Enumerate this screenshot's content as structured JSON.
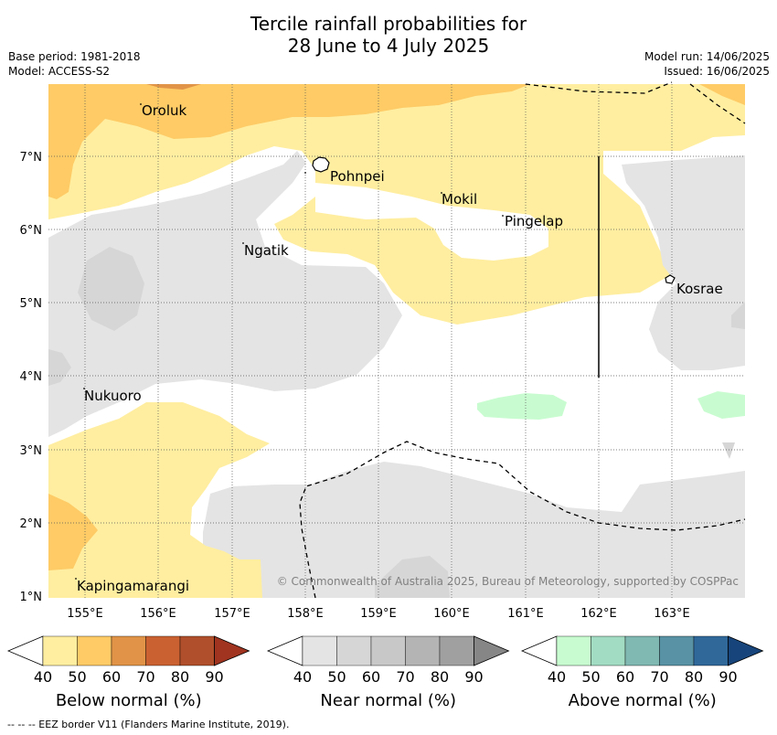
{
  "title_line1": "Tercile rainfall probabilities for",
  "title_line2": "28 June to 4 July 2025",
  "base_period": "Base period: 1981-2018",
  "model": "Model: ACCESS-S2",
  "model_run": "Model run: 14/06/2025",
  "issued": "Issued: 16/06/2025",
  "places": {
    "oroluk": "Oroluk",
    "pohnpei": "Pohnpei",
    "mokil": "Mokil",
    "pingelap": "Pingelap",
    "ngatik": "Ngatik",
    "kosrae": "Kosrae",
    "nukuoro": "Nukuoro",
    "kapingamarangi": "Kapingamarangi"
  },
  "lon_ticks": [
    "155°E",
    "156°E",
    "157°E",
    "158°E",
    "159°E",
    "160°E",
    "161°E",
    "162°E",
    "163°E"
  ],
  "lat_ticks": [
    "7°N",
    "6°N",
    "5°N",
    "4°N",
    "3°N",
    "2°N",
    "1°N"
  ],
  "copyright": "© Commonwealth of Australia 2025, Bureau of Meteorology, supported by COSPPac",
  "colorbars": [
    {
      "title": "Below normal (%)",
      "labels": [
        "40",
        "50",
        "60",
        "70",
        "80",
        "90"
      ],
      "colors": [
        "#ffffff",
        "#ffeea0",
        "#fecb66",
        "#e19447",
        "#ca6131",
        "#b04f2b",
        "#a03420"
      ]
    },
    {
      "title": "Near normal (%)",
      "labels": [
        "40",
        "50",
        "60",
        "70",
        "80",
        "90"
      ],
      "colors": [
        "#ffffff",
        "#e4e4e4",
        "#d6d6d6",
        "#c8c8c8",
        "#b4b4b4",
        "#a0a0a0",
        "#868686"
      ]
    },
    {
      "title": "Above normal (%)",
      "labels": [
        "40",
        "50",
        "60",
        "70",
        "80",
        "90"
      ],
      "colors": [
        "#ffffff",
        "#c8fcd0",
        "#a2dcc2",
        "#80b8b2",
        "#5892a4",
        "#30689a",
        "#17457b"
      ]
    }
  ],
  "footer": "-- -- -- EEZ border V11 (Flanders Marine Institute, 2019)."
}
